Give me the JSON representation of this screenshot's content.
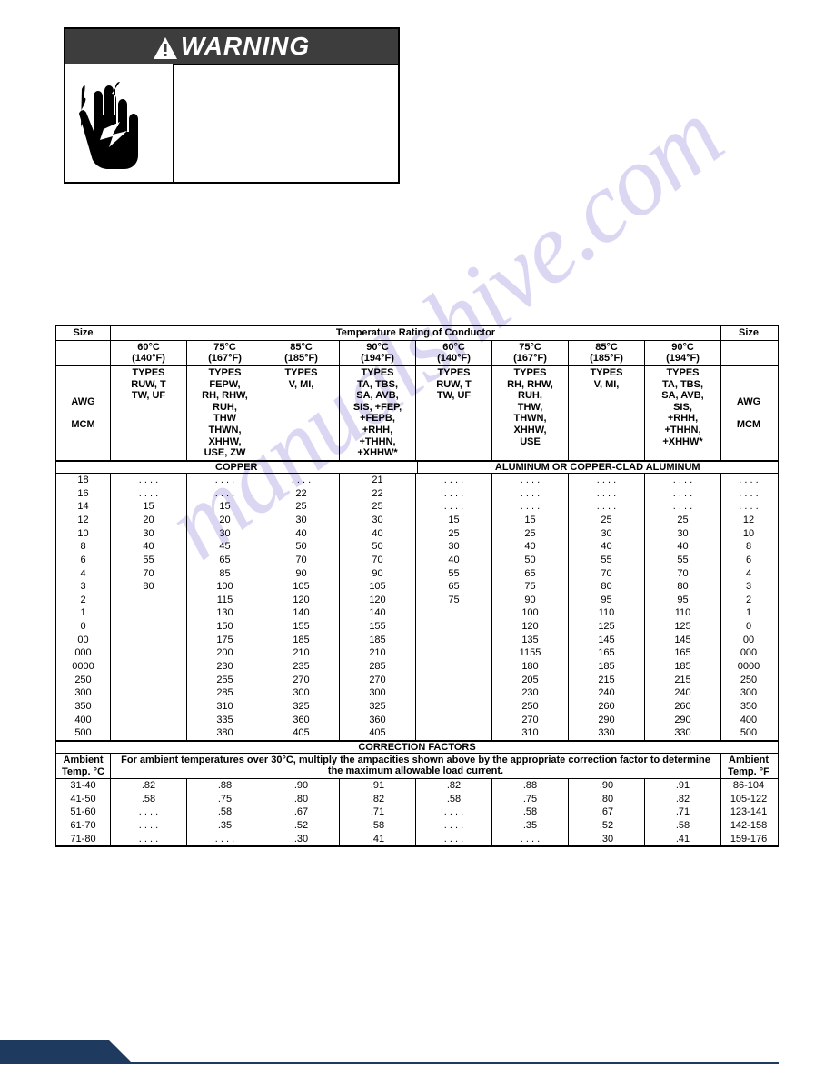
{
  "warning": {
    "title": "WARNING"
  },
  "watermark": "manualshive.com",
  "table": {
    "header": {
      "size": "Size",
      "temp_title": "Temperature Rating of Conductor",
      "temps": [
        {
          "c": "60°C",
          "f": "(140°F)"
        },
        {
          "c": "75°C",
          "f": "(167°F)"
        },
        {
          "c": "85°C",
          "f": "(185°F)"
        },
        {
          "c": "90°C",
          "f": "(194°F)"
        },
        {
          "c": "60°C",
          "f": "(140°F)"
        },
        {
          "c": "75°C",
          "f": "(167°F)"
        },
        {
          "c": "85°C",
          "f": "(185°F)"
        },
        {
          "c": "90°C",
          "f": "(194°F)"
        }
      ],
      "awg_mcm": "AWG\n\nMCM",
      "types": [
        "TYPES\nRUW, T\nTW, UF",
        "TYPES\nFEPW,\nRH, RHW,\nRUH,\nTHW\nTHWN,\nXHHW,\nUSE, ZW",
        "TYPES\nV, MI,",
        "TYPES\nTA, TBS,\nSA, AVB,\nSIS, +FEP,\n+FEPB,\n+RHH,\n+THHN,\n+XHHW*",
        "TYPES\nRUW, T\nTW, UF",
        "TYPES\nRH, RHW,\nRUH,\nTHW,\nTHWN,\nXHHW,\nUSE",
        "TYPES\nV, MI,",
        "TYPES\nTA, TBS,\nSA, AVB,\nSIS,\n+RHH,\n+THHN,\n+XHHW*"
      ],
      "material_left": "COPPER",
      "material_right": "ALUMINUM OR COPPER-CLAD ALUMINUM"
    },
    "rows": [
      {
        "s": "18",
        "d": [
          ". . . .",
          ". . . .",
          ". . . .",
          "21",
          ". . . .",
          ". . . .",
          ". . . .",
          ". . . ."
        ],
        "s2": ". . . ."
      },
      {
        "s": "16",
        "d": [
          ". . . .",
          ". . . .",
          "22",
          "22",
          ". . . .",
          ". . . .",
          ". . . .",
          ". . . ."
        ],
        "s2": ". . . ."
      },
      {
        "s": "14",
        "d": [
          "15",
          "15",
          "25",
          "25",
          ". . . .",
          ". . . .",
          ". . . .",
          ". . . ."
        ],
        "s2": ". . . ."
      },
      {
        "s": "12",
        "d": [
          "20",
          "20",
          "30",
          "30",
          "15",
          "15",
          "25",
          "25"
        ],
        "s2": "12"
      },
      {
        "s": "10",
        "d": [
          "30",
          "30",
          "40",
          "40",
          "25",
          "25",
          "30",
          "30"
        ],
        "s2": "10"
      },
      {
        "s": "8",
        "d": [
          "40",
          "45",
          "50",
          "50",
          "30",
          "40",
          "40",
          "40"
        ],
        "s2": "8"
      },
      {
        "s": "6",
        "d": [
          "55",
          "65",
          "70",
          "70",
          "40",
          "50",
          "55",
          "55"
        ],
        "s2": "6"
      },
      {
        "s": "4",
        "d": [
          "70",
          "85",
          "90",
          "90",
          "55",
          "65",
          "70",
          "70"
        ],
        "s2": "4"
      },
      {
        "s": "3",
        "d": [
          "80",
          "100",
          "105",
          "105",
          "65",
          "75",
          "80",
          "80"
        ],
        "s2": "3"
      },
      {
        "s": "2",
        "d": [
          "",
          "115",
          "120",
          "120",
          "75",
          "90",
          "95",
          "95"
        ],
        "s2": "2"
      },
      {
        "s": "1",
        "d": [
          "",
          "130",
          "140",
          "140",
          "",
          "100",
          "110",
          "110"
        ],
        "s2": "1"
      },
      {
        "s": "0",
        "d": [
          "",
          "150",
          "155",
          "155",
          "",
          "120",
          "125",
          "125"
        ],
        "s2": "0"
      },
      {
        "s": "00",
        "d": [
          "",
          "175",
          "185",
          "185",
          "",
          "135",
          "145",
          "145"
        ],
        "s2": "00"
      },
      {
        "s": "000",
        "d": [
          "",
          "200",
          "210",
          "210",
          "",
          "1155",
          "165",
          "165"
        ],
        "s2": "000"
      },
      {
        "s": "0000",
        "d": [
          "",
          "230",
          "235",
          "285",
          "",
          "180",
          "185",
          "185"
        ],
        "s2": "0000"
      },
      {
        "s": "250",
        "d": [
          "",
          "255",
          "270",
          "270",
          "",
          "205",
          "215",
          "215"
        ],
        "s2": "250"
      },
      {
        "s": "300",
        "d": [
          "",
          "285",
          "300",
          "300",
          "",
          "230",
          "240",
          "240"
        ],
        "s2": "300"
      },
      {
        "s": "350",
        "d": [
          "",
          "310",
          "325",
          "325",
          "",
          "250",
          "260",
          "260"
        ],
        "s2": "350"
      },
      {
        "s": "400",
        "d": [
          "",
          "335",
          "360",
          "360",
          "",
          "270",
          "290",
          "290"
        ],
        "s2": "400"
      },
      {
        "s": "500",
        "d": [
          "",
          "380",
          "405",
          "405",
          "",
          "310",
          "330",
          "330"
        ],
        "s2": "500"
      }
    ],
    "correction": {
      "title": "CORRECTION FACTORS",
      "ambient_c_label": "Ambient\nTemp. °C",
      "ambient_f_label": "Ambient\nTemp. °F",
      "note": "For ambient temperatures over 30°C, multiply the ampacities shown above by the appropriate correction factor to determine the maximum allowable load current.",
      "rows": [
        {
          "c": "31-40",
          "d": [
            ".82",
            ".88",
            ".90",
            ".91",
            ".82",
            ".88",
            ".90",
            ".91"
          ],
          "f": "86-104"
        },
        {
          "c": "41-50",
          "d": [
            ".58",
            ".75",
            ".80",
            ".82",
            ".58",
            ".75",
            ".80",
            ".82"
          ],
          "f": "105-122"
        },
        {
          "c": "51-60",
          "d": [
            ". . . .",
            ".58",
            ".67",
            ".71",
            ". . . .",
            ".58",
            ".67",
            ".71"
          ],
          "f": "123-141"
        },
        {
          "c": "61-70",
          "d": [
            ". . . .",
            ".35",
            ".52",
            ".58",
            ". . . .",
            ".35",
            ".52",
            ".58"
          ],
          "f": "142-158"
        },
        {
          "c": "71-80",
          "d": [
            ". . . .",
            ". . . .",
            ".30",
            ".41",
            ". . . .",
            ". . . .",
            ".30",
            ".41"
          ],
          "f": "159-176"
        }
      ]
    }
  },
  "colors": {
    "header_bg": "#3d3d3d",
    "footer": "#1e3a5f",
    "watermark": "#b8b0e8",
    "border": "#000000"
  }
}
